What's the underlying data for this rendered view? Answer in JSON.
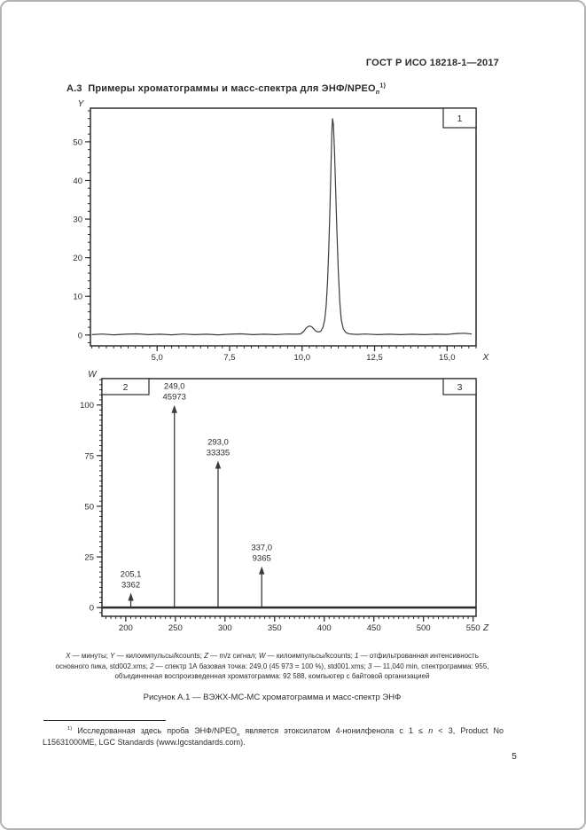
{
  "page": {
    "header": "ГОСТ Р ИСО 18218-1—2017",
    "page_number": "5",
    "ink_color": "#2b2b2b",
    "line_color": "#3a3a3a"
  },
  "section_title": {
    "segments": [
      {
        "t": "А.3  Примеры хроматограммы и масс-спектра для ЭНФ/NPEO"
      },
      {
        "t": "n",
        "s": "sub-i"
      },
      {
        "t": "1)",
        "s": "sup"
      }
    ]
  },
  "caption": {
    "lines": [
      [
        {
          "t": "X",
          "s": "i"
        },
        {
          "t": " — минуты; "
        },
        {
          "t": "Y",
          "s": "i"
        },
        {
          "t": " — килоимпульсы/kcounts; "
        },
        {
          "t": "Z",
          "s": "i"
        },
        {
          "t": " — m/z сигнал; "
        },
        {
          "t": "W",
          "s": "i"
        },
        {
          "t": " — килоимпульсы/kcounts; "
        },
        {
          "t": "1",
          "s": "i"
        },
        {
          "t": " — отфильтрованная интенсивность"
        }
      ],
      [
        {
          "t": "основного пика, std002.xms; "
        },
        {
          "t": "2",
          "s": "i"
        },
        {
          "t": " — спектр 1А базовая точка: 249,0 (45 973 = 100 %), std001.xms; "
        },
        {
          "t": "3",
          "s": "i"
        },
        {
          "t": " — 11,040 min, спектрограмма: 955,"
        }
      ],
      [
        {
          "t": "объединенная воспроизведенная хроматограмма: 92 588, компьютер с байтовой организацией"
        }
      ]
    ]
  },
  "figure_caption": "Рисунок А.1 — ВЭЖХ-МС-МС хроматограмма и масс-спектр ЭНФ",
  "footnote": {
    "segments": [
      {
        "t": "1)",
        "s": "sup"
      },
      {
        "t": " Исследованная здесь проба ЭНФ/NPEO"
      },
      {
        "t": "n",
        "s": "sub-i"
      },
      {
        "t": " является этоксилатом 4-нонилфенола с 1 ≤ "
      },
      {
        "t": "n",
        "s": "i"
      },
      {
        "t": " < 3, Product No L15631000ME, LGC Standards (www.lgcstandards.com)."
      }
    ]
  },
  "chart_data": [
    {
      "type": "line",
      "name": "chromatogram",
      "panel_label": "1",
      "xlabel": "X",
      "ylabel": "Y",
      "xlim": [
        2.7,
        16.0
      ],
      "ylim": [
        -2.8,
        58.7
      ],
      "x_major_ticks": [
        5.0,
        7.5,
        10.0,
        12.5,
        15.0
      ],
      "x_tick_labels": [
        "5,0",
        "7,5",
        "10,0",
        "12,5",
        "15,0"
      ],
      "x_minor_step": 0.25,
      "y_major_ticks": [
        0,
        10,
        20,
        30,
        40,
        50
      ],
      "y_tick_labels": [
        "0",
        "10",
        "20",
        "30",
        "40",
        "50"
      ],
      "y_minor_step": 2,
      "grid": false,
      "peak_retention_min": 11.04,
      "peak_height": 56,
      "series": [
        {
          "name": "отфильтрованная интенсивность основного пика, std002.xms",
          "x": [
            2.75,
            3.1,
            3.5,
            3.9,
            4.3,
            4.7,
            5.1,
            5.5,
            5.9,
            6.3,
            6.7,
            7.1,
            7.5,
            7.9,
            8.3,
            8.7,
            9.1,
            9.5,
            9.8,
            9.95,
            10.05,
            10.15,
            10.25,
            10.33,
            10.42,
            10.5,
            10.58,
            10.65,
            10.72,
            10.78,
            10.83,
            10.88,
            10.92,
            10.96,
            11.0,
            11.03,
            11.05,
            11.08,
            11.12,
            11.16,
            11.2,
            11.25,
            11.3,
            11.35,
            11.42,
            11.5,
            11.6,
            11.75,
            11.9,
            12.2,
            12.6,
            13.0,
            13.4,
            13.8,
            14.2,
            14.6,
            15.0,
            15.35,
            15.6,
            15.85
          ],
          "y": [
            0.1,
            0.25,
            0.05,
            0.2,
            0.3,
            0.1,
            0.2,
            0.05,
            0.25,
            0.1,
            0.2,
            0.05,
            0.2,
            0.3,
            0.1,
            0.2,
            0.1,
            0.25,
            0.2,
            0.3,
            0.9,
            1.9,
            2.35,
            2.15,
            1.4,
            0.9,
            0.8,
            1.0,
            2.0,
            4.0,
            7.5,
            14,
            22,
            33,
            45,
            53,
            56,
            54.5,
            47,
            37,
            27,
            16.5,
            8.5,
            4.0,
            1.6,
            0.7,
            0.35,
            0.2,
            0.15,
            0.25,
            0.1,
            0.2,
            0.1,
            0.2,
            0.1,
            0.2,
            0.15,
            0.4,
            0.45,
            0.25
          ]
        }
      ]
    },
    {
      "type": "bar",
      "name": "mass-spectrum",
      "panel_labels": [
        "2",
        "3"
      ],
      "xlabel": "Z",
      "ylabel": "W",
      "xlim": [
        176,
        553
      ],
      "ylim": [
        -4.3,
        113
      ],
      "x_major_ticks": [
        200,
        250,
        300,
        350,
        400,
        450,
        500,
        550
      ],
      "x_tick_labels": [
        "200",
        "250",
        "300",
        "350",
        "400",
        "450",
        "500",
        "550"
      ],
      "x_minor_step": 5,
      "y_major_ticks": [
        0,
        25,
        50,
        75,
        100
      ],
      "y_tick_labels": [
        "0",
        "25",
        "50",
        "75",
        "100"
      ],
      "y_minor_step": 2.5,
      "grid": false,
      "base_peak_note": "249,0 (45 973 = 100 %)",
      "peaks": [
        {
          "mz": 205.1,
          "mz_label": "205,1",
          "counts": 3362,
          "counts_label": "3362",
          "rel_height_pct": 7.3
        },
        {
          "mz": 249.0,
          "mz_label": "249,0",
          "counts": 45973,
          "counts_label": "45973",
          "rel_height_pct": 100
        },
        {
          "mz": 293.0,
          "mz_label": "293,0",
          "counts": 33335,
          "counts_label": "33335",
          "rel_height_pct": 72.5
        },
        {
          "mz": 337.0,
          "mz_label": "337,0",
          "counts": 9365,
          "counts_label": "9365",
          "rel_height_pct": 20.4
        }
      ]
    }
  ]
}
